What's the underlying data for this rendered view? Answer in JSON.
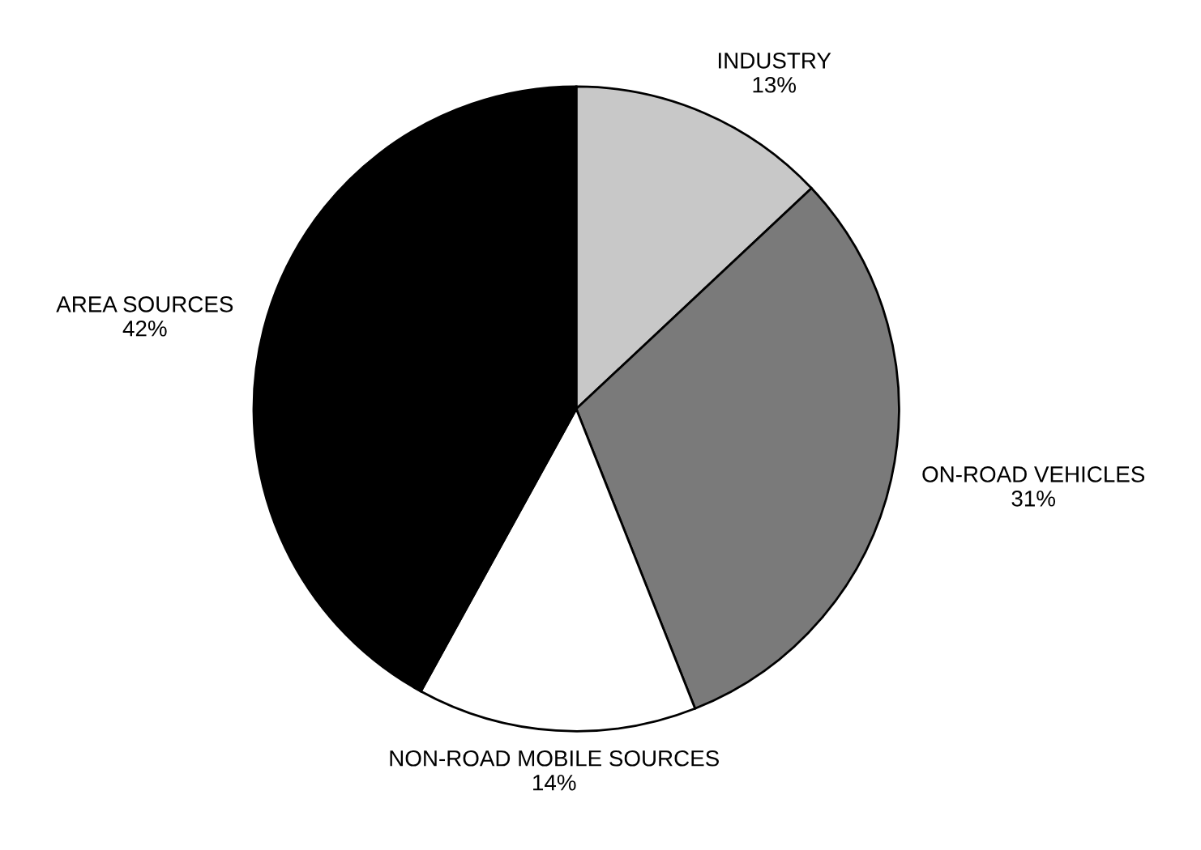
{
  "chart_data": {
    "type": "pie",
    "categories": [
      "INDUSTRY",
      "ON-ROAD VEHICLES",
      "NON-ROAD MOBILE SOURCES",
      "AREA SOURCES"
    ],
    "values": [
      13,
      31,
      14,
      42
    ],
    "value_labels": [
      "13%",
      "31%",
      "14%",
      "42%"
    ],
    "colors": [
      "#c8c8c8",
      "#7a7a7a",
      "#ffffff",
      "#000000"
    ]
  }
}
